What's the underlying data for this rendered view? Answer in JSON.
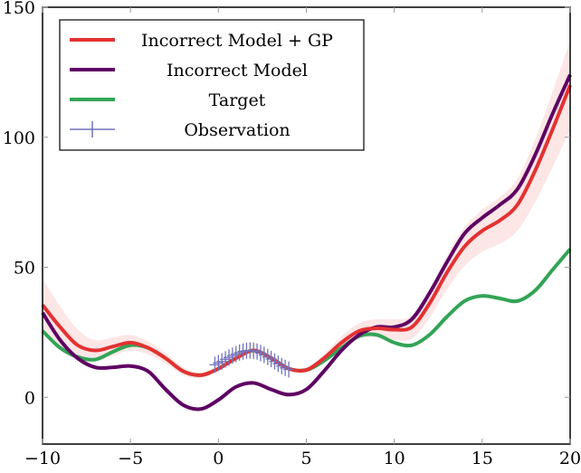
{
  "chart_data": {
    "type": "line",
    "title": "",
    "xlabel": "",
    "ylabel": "",
    "xlim": [
      -10,
      20
    ],
    "ylim": [
      -18,
      150
    ],
    "grid": false,
    "legend_placement": "top-left",
    "x_ticks": [
      "−10",
      "−5",
      "0",
      "5",
      "10",
      "15",
      "20"
    ],
    "x_tick_values": [
      -10,
      -5,
      0,
      5,
      10,
      15,
      20
    ],
    "y_ticks": [
      "0",
      "50",
      "100",
      "150"
    ],
    "y_tick_values": [
      0,
      50,
      100,
      150
    ],
    "x": [
      -10,
      -9,
      -8,
      -7,
      -6,
      -5,
      -4,
      -3,
      -2,
      -1,
      0,
      1,
      2,
      3,
      4,
      5,
      6,
      7,
      8,
      9,
      10,
      11,
      12,
      13,
      14,
      15,
      16,
      17,
      18,
      19,
      20
    ],
    "series": [
      {
        "name": "Incorrect Model + GP",
        "color": "#e33232",
        "values": [
          35.5,
          27,
          20,
          18,
          19.5,
          21,
          19,
          15,
          10,
          8.5,
          11,
          15,
          18,
          15,
          11,
          10.5,
          15,
          21,
          25.5,
          26.5,
          26,
          27,
          36,
          48,
          58,
          64,
          68,
          74,
          87,
          103,
          120
        ],
        "band_halfwidth": [
          10,
          8,
          6,
          4,
          3.5,
          3,
          2.5,
          2,
          1.5,
          1,
          0.5,
          0.3,
          0.3,
          0.3,
          0.5,
          1,
          1.5,
          2.5,
          3,
          3.5,
          4,
          4.5,
          5.5,
          6.5,
          7.5,
          8,
          9,
          10,
          12,
          14.5,
          17
        ]
      },
      {
        "name": "Incorrect Model",
        "color": "#5e0063",
        "values": [
          32.5,
          22,
          15,
          11.5,
          11.5,
          12,
          10,
          3,
          -3,
          -4.5,
          -1,
          4,
          5.5,
          3,
          1,
          3,
          10,
          18,
          24,
          27,
          27,
          30,
          40,
          52,
          63,
          69,
          74,
          80,
          93,
          109,
          124
        ]
      },
      {
        "name": "Target",
        "color": "#32a456",
        "values": [
          25.5,
          19,
          15.5,
          14.5,
          17.5,
          20,
          19,
          15,
          10,
          8.5,
          11,
          15,
          18,
          15,
          11,
          10.5,
          14,
          19,
          23.5,
          24,
          21,
          20,
          24,
          31,
          37,
          39,
          38,
          37,
          41,
          49,
          57
        ]
      }
    ],
    "observations": {
      "name": "Observation",
      "color": "#7272bb",
      "x": [
        -0.2,
        0,
        0.2,
        0.4,
        0.6,
        0.8,
        1,
        1.2,
        1.4,
        1.6,
        1.8,
        2,
        2.2,
        2.4,
        2.6,
        2.8,
        3,
        3.2,
        3.4,
        3.6,
        3.8,
        4
      ],
      "y": [
        12.5,
        13.2,
        13.8,
        14.6,
        15.3,
        16,
        16.6,
        17.2,
        17.6,
        17.9,
        18,
        17.9,
        17.6,
        17,
        16.3,
        15.5,
        14.7,
        13.8,
        12.9,
        12,
        11.3,
        10.7
      ]
    }
  }
}
